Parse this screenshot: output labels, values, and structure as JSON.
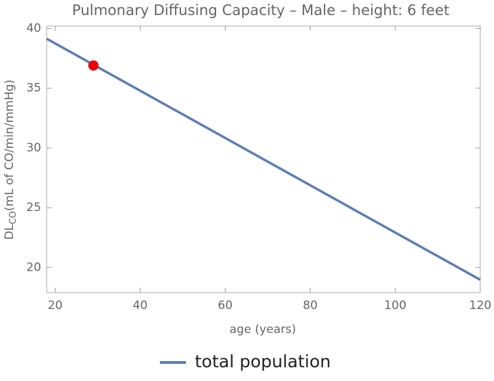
{
  "chart_data": {
    "type": "line",
    "title": "Pulmonary Diffusing Capacity – Male – height: 6 feet",
    "xlabel": "age (years)",
    "ylabel": {
      "main": "DL",
      "sub": "CO",
      "rest": "(mL of CO/min/mmHg)"
    },
    "x": [
      18,
      120
    ],
    "series": [
      {
        "name": "total population",
        "color": "#5b7db1",
        "values": [
          39.14,
          18.97
        ]
      }
    ],
    "point": {
      "x": 29,
      "y": 36.9,
      "color": "#e8000b"
    },
    "xlim": [
      18,
      120
    ],
    "ylim": [
      17.9,
      40.2
    ],
    "xticks": [
      20,
      40,
      60,
      80,
      100,
      120
    ],
    "yticks": [
      20,
      25,
      30,
      35,
      40
    ]
  }
}
